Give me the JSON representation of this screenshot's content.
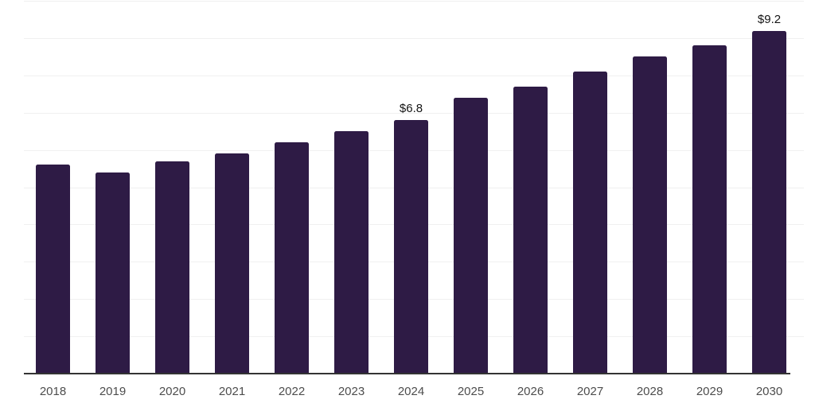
{
  "chart_data": {
    "type": "bar",
    "categories": [
      "2018",
      "2019",
      "2020",
      "2021",
      "2022",
      "2023",
      "2024",
      "2025",
      "2026",
      "2027",
      "2028",
      "2029",
      "2030"
    ],
    "values": [
      5.6,
      5.4,
      5.7,
      5.9,
      6.2,
      6.5,
      6.8,
      7.4,
      7.7,
      8.1,
      8.5,
      8.8,
      9.2
    ],
    "data_labels": {
      "2024": "$6.8",
      "2030": "$9.2"
    },
    "xlabel": "",
    "ylabel": "",
    "ylim": [
      0,
      10
    ],
    "gridline_step": 1,
    "grid": true,
    "legend": false,
    "colors": {
      "bar": "#2e1b45",
      "gridline": "#f0f0f0",
      "axis_line": "#333333",
      "tick_label": "#4d4d4d",
      "data_label": "#141414",
      "background": "#ffffff"
    }
  }
}
